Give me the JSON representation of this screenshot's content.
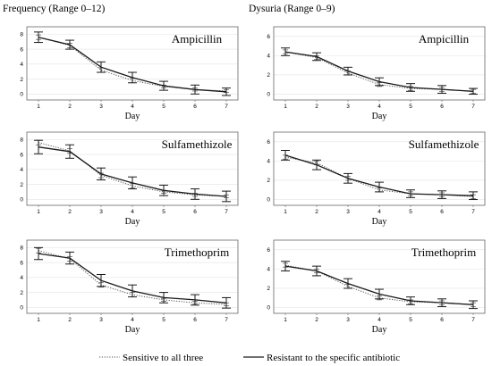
{
  "column_titles": [
    "Frequency (Range 0–12)",
    "Dysuria (Range 0–9)"
  ],
  "legend": [
    {
      "label": "Sensitive to all three",
      "style": "dotted"
    },
    {
      "label": "Resistant to the specific antibiotic",
      "style": "solid"
    }
  ],
  "colors": {
    "line": "#1a1a1a",
    "dotted": "#555555",
    "frame": "#666666",
    "grid": "#e3e3e3"
  },
  "chart_data": [
    {
      "type": "line",
      "title": "Ampicillin",
      "column": "Frequency (Range 0–12)",
      "xlabel": "Day",
      "x": [
        1,
        2,
        3,
        4,
        5,
        6,
        7
      ],
      "yticks": [
        0,
        2,
        4,
        6,
        8
      ],
      "ylim": [
        -0.8,
        9
      ],
      "series": [
        {
          "name": "Resistant to the specific antibiotic",
          "style": "solid",
          "y": [
            7.6,
            6.6,
            3.6,
            2.2,
            1.1,
            0.6,
            0.3
          ],
          "err": [
            0.7,
            0.6,
            0.7,
            0.7,
            0.6,
            0.6,
            0.5
          ]
        },
        {
          "name": "Sensitive to all three",
          "style": "dotted",
          "y": [
            7.6,
            6.5,
            3.2,
            1.8,
            1.0,
            0.6,
            0.4
          ],
          "err": [
            0.3,
            0.3,
            0.3,
            0.3,
            0.2,
            0.2,
            0.2
          ]
        }
      ]
    },
    {
      "type": "line",
      "title": "Ampicillin",
      "column": "Dysuria (Range 0–9)",
      "xlabel": "Day",
      "x": [
        1,
        2,
        3,
        4,
        5,
        6,
        7
      ],
      "yticks": [
        0,
        2,
        4,
        6
      ],
      "ylim": [
        -0.6,
        7
      ],
      "series": [
        {
          "name": "Resistant to the specific antibiotic",
          "style": "solid",
          "y": [
            4.4,
            3.9,
            2.4,
            1.3,
            0.7,
            0.5,
            0.3
          ],
          "err": [
            0.4,
            0.4,
            0.4,
            0.4,
            0.4,
            0.4,
            0.3
          ]
        },
        {
          "name": "Sensitive to all three",
          "style": "dotted",
          "y": [
            4.4,
            3.8,
            2.2,
            1.0,
            0.6,
            0.5,
            0.3
          ],
          "err": [
            0.2,
            0.2,
            0.2,
            0.2,
            0.2,
            0.2,
            0.2
          ]
        }
      ]
    },
    {
      "type": "line",
      "title": "Sulfamethizole",
      "column": "Frequency (Range 0–12)",
      "xlabel": "Day",
      "x": [
        1,
        2,
        3,
        4,
        5,
        6,
        7
      ],
      "yticks": [
        0,
        2,
        4,
        6,
        8
      ],
      "ylim": [
        -0.8,
        9
      ],
      "series": [
        {
          "name": "Resistant to the specific antibiotic",
          "style": "solid",
          "y": [
            7.0,
            6.4,
            3.4,
            2.2,
            1.2,
            0.7,
            0.4
          ],
          "err": [
            0.9,
            0.9,
            0.8,
            0.8,
            0.7,
            0.7,
            0.7
          ]
        },
        {
          "name": "Sensitive to all three",
          "style": "dotted",
          "y": [
            7.6,
            6.5,
            3.2,
            1.8,
            1.0,
            0.6,
            0.4
          ],
          "err": [
            0.3,
            0.3,
            0.3,
            0.3,
            0.2,
            0.2,
            0.2
          ]
        }
      ]
    },
    {
      "type": "line",
      "title": "Sulfamethizole",
      "column": "Dysuria (Range 0–9)",
      "xlabel": "Day",
      "x": [
        1,
        2,
        3,
        4,
        5,
        6,
        7
      ],
      "yticks": [
        0,
        2,
        4,
        6
      ],
      "ylim": [
        -0.6,
        7
      ],
      "series": [
        {
          "name": "Resistant to the specific antibiotic",
          "style": "solid",
          "y": [
            4.6,
            3.6,
            2.2,
            1.3,
            0.6,
            0.5,
            0.4
          ],
          "err": [
            0.5,
            0.5,
            0.5,
            0.5,
            0.4,
            0.4,
            0.4
          ]
        },
        {
          "name": "Sensitive to all three",
          "style": "dotted",
          "y": [
            4.4,
            3.8,
            2.2,
            1.0,
            0.6,
            0.5,
            0.3
          ],
          "err": [
            0.2,
            0.2,
            0.2,
            0.2,
            0.2,
            0.2,
            0.2
          ]
        }
      ]
    },
    {
      "type": "line",
      "title": "Trimethoprim",
      "column": "Frequency (Range 0–12)",
      "xlabel": "Day",
      "x": [
        1,
        2,
        3,
        4,
        5,
        6,
        7
      ],
      "yticks": [
        0,
        2,
        4,
        6,
        8
      ],
      "ylim": [
        -0.8,
        9
      ],
      "series": [
        {
          "name": "Resistant to the specific antibiotic",
          "style": "solid",
          "y": [
            7.2,
            6.6,
            3.6,
            2.2,
            1.3,
            1.0,
            0.6
          ],
          "err": [
            0.8,
            0.8,
            0.8,
            0.8,
            0.7,
            0.7,
            0.7
          ]
        },
        {
          "name": "Sensitive to all three",
          "style": "dotted",
          "y": [
            7.6,
            6.5,
            3.0,
            1.7,
            1.0,
            0.6,
            0.4
          ],
          "err": [
            0.3,
            0.3,
            0.3,
            0.3,
            0.2,
            0.2,
            0.2
          ]
        }
      ]
    },
    {
      "type": "line",
      "title": "Trimethoprim",
      "column": "Dysuria (Range 0–9)",
      "xlabel": "Day",
      "x": [
        1,
        2,
        3,
        4,
        5,
        6,
        7
      ],
      "yticks": [
        0,
        2,
        4,
        6
      ],
      "ylim": [
        -0.6,
        7
      ],
      "series": [
        {
          "name": "Resistant to the specific antibiotic",
          "style": "solid",
          "y": [
            4.3,
            3.8,
            2.5,
            1.4,
            0.7,
            0.5,
            0.3
          ],
          "err": [
            0.5,
            0.5,
            0.5,
            0.5,
            0.4,
            0.4,
            0.4
          ]
        },
        {
          "name": "Sensitive to all three",
          "style": "dotted",
          "y": [
            4.4,
            3.8,
            2.2,
            1.0,
            0.6,
            0.5,
            0.3
          ],
          "err": [
            0.2,
            0.2,
            0.2,
            0.2,
            0.2,
            0.2,
            0.2
          ]
        }
      ]
    }
  ]
}
